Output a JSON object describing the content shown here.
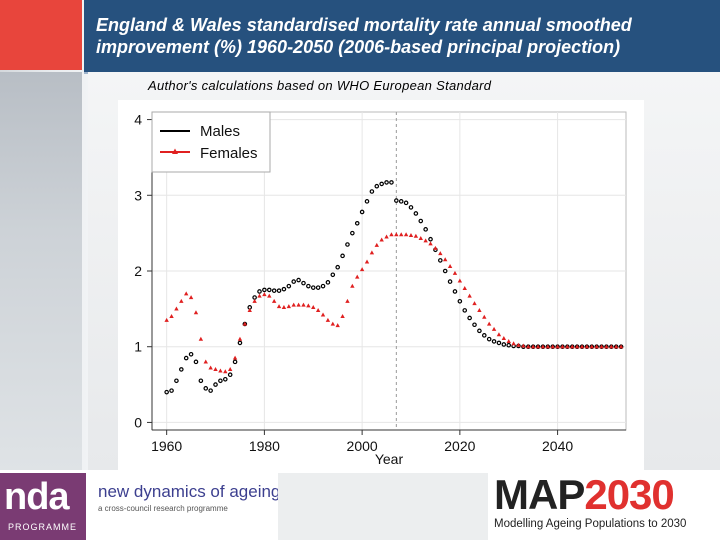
{
  "slide": {
    "title": "England & Wales standardised mortality rate annual  smoothed improvement (%) 1960-2050 (2006-based principal projection)",
    "subtitle": "Author's calculations based on WHO European Standard"
  },
  "footer": {
    "nda_logo": "nda",
    "nda_programme": "PROGRAMME",
    "nda_name": "new dynamics of ageing",
    "nda_tagline": "a cross-council research programme",
    "map_logo_left": "MAP",
    "map_logo_right": "2030",
    "map_tagline": "Modelling Ageing Populations to 2030"
  },
  "colors": {
    "males": "#000000",
    "females": "#e02020",
    "title_bg": "#26517e",
    "accent": "#e8453c"
  },
  "chart_data": {
    "type": "scatter",
    "xlabel": "Year",
    "ylabel": "",
    "xlim": [
      1957,
      2054
    ],
    "ylim": [
      -0.1,
      4.1
    ],
    "x_ticks": [
      1960,
      1980,
      2000,
      2020,
      2040
    ],
    "y_ticks": [
      0,
      1,
      2,
      3,
      4
    ],
    "vline": 2007,
    "grid": true,
    "legend_position": "top-left",
    "series": [
      {
        "name": "Males",
        "color": "#000000",
        "marker": "circle",
        "x": [
          1960,
          1961,
          1962,
          1963,
          1964,
          1965,
          1966,
          1967,
          1968,
          1969,
          1970,
          1971,
          1972,
          1973,
          1974,
          1975,
          1976,
          1977,
          1978,
          1979,
          1980,
          1981,
          1982,
          1983,
          1984,
          1985,
          1986,
          1987,
          1988,
          1989,
          1990,
          1991,
          1992,
          1993,
          1994,
          1995,
          1996,
          1997,
          1998,
          1999,
          2000,
          2001,
          2002,
          2003,
          2004,
          2005,
          2006,
          2007,
          2008,
          2009,
          2010,
          2011,
          2012,
          2013,
          2014,
          2015,
          2016,
          2017,
          2018,
          2019,
          2020,
          2021,
          2022,
          2023,
          2024,
          2025,
          2026,
          2027,
          2028,
          2029,
          2030,
          2031,
          2032,
          2033,
          2034,
          2035,
          2036,
          2037,
          2038,
          2039,
          2040,
          2041,
          2042,
          2043,
          2044,
          2045,
          2046,
          2047,
          2048,
          2049,
          2050,
          2051,
          2052,
          2053
        ],
        "values": [
          0.4,
          0.42,
          0.55,
          0.7,
          0.85,
          0.9,
          0.8,
          0.55,
          0.45,
          0.42,
          0.5,
          0.55,
          0.57,
          0.63,
          0.8,
          1.05,
          1.3,
          1.52,
          1.65,
          1.73,
          1.75,
          1.75,
          1.74,
          1.74,
          1.76,
          1.8,
          1.86,
          1.88,
          1.84,
          1.8,
          1.78,
          1.78,
          1.8,
          1.85,
          1.95,
          2.05,
          2.2,
          2.35,
          2.5,
          2.63,
          2.78,
          2.92,
          3.05,
          3.12,
          3.15,
          3.17,
          3.17,
          2.93,
          2.92,
          2.9,
          2.84,
          2.76,
          2.66,
          2.55,
          2.42,
          2.28,
          2.14,
          2.0,
          1.86,
          1.73,
          1.6,
          1.48,
          1.38,
          1.29,
          1.21,
          1.15,
          1.1,
          1.07,
          1.05,
          1.03,
          1.02,
          1.01,
          1.01,
          1.0,
          1.0,
          1.0,
          1.0,
          1.0,
          1.0,
          1.0,
          1.0,
          1.0,
          1.0,
          1.0,
          1.0,
          1.0,
          1.0,
          1.0,
          1.0,
          1.0,
          1.0,
          1.0,
          1.0,
          1.0
        ]
      },
      {
        "name": "Females",
        "color": "#e02020",
        "marker": "triangle",
        "x": [
          1960,
          1961,
          1962,
          1963,
          1964,
          1965,
          1966,
          1967,
          1968,
          1969,
          1970,
          1971,
          1972,
          1973,
          1974,
          1975,
          1976,
          1977,
          1978,
          1979,
          1980,
          1981,
          1982,
          1983,
          1984,
          1985,
          1986,
          1987,
          1988,
          1989,
          1990,
          1991,
          1992,
          1993,
          1994,
          1995,
          1996,
          1997,
          1998,
          1999,
          2000,
          2001,
          2002,
          2003,
          2004,
          2005,
          2006,
          2007,
          2008,
          2009,
          2010,
          2011,
          2012,
          2013,
          2014,
          2015,
          2016,
          2017,
          2018,
          2019,
          2020,
          2021,
          2022,
          2023,
          2024,
          2025,
          2026,
          2027,
          2028,
          2029,
          2030,
          2031,
          2032,
          2033,
          2034,
          2035,
          2036,
          2037,
          2038,
          2039,
          2040,
          2041,
          2042,
          2043,
          2044,
          2045,
          2046,
          2047,
          2048,
          2049,
          2050,
          2051,
          2052,
          2053
        ],
        "values": [
          1.35,
          1.4,
          1.5,
          1.6,
          1.7,
          1.65,
          1.45,
          1.1,
          0.8,
          0.72,
          0.7,
          0.68,
          0.67,
          0.7,
          0.85,
          1.1,
          1.3,
          1.48,
          1.6,
          1.67,
          1.69,
          1.67,
          1.6,
          1.53,
          1.52,
          1.53,
          1.55,
          1.55,
          1.55,
          1.54,
          1.52,
          1.48,
          1.42,
          1.35,
          1.3,
          1.28,
          1.4,
          1.6,
          1.8,
          1.92,
          2.02,
          2.12,
          2.24,
          2.34,
          2.41,
          2.45,
          2.48,
          2.48,
          2.48,
          2.48,
          2.47,
          2.46,
          2.43,
          2.4,
          2.36,
          2.3,
          2.23,
          2.15,
          2.06,
          1.97,
          1.87,
          1.77,
          1.67,
          1.57,
          1.48,
          1.39,
          1.3,
          1.23,
          1.16,
          1.11,
          1.07,
          1.04,
          1.02,
          1.01,
          1.0,
          1.0,
          1.0,
          1.0,
          1.0,
          1.0,
          1.0,
          1.0,
          1.0,
          1.0,
          1.0,
          1.0,
          1.0,
          1.0,
          1.0,
          1.0,
          1.0,
          1.0,
          1.0,
          1.0
        ]
      }
    ]
  }
}
